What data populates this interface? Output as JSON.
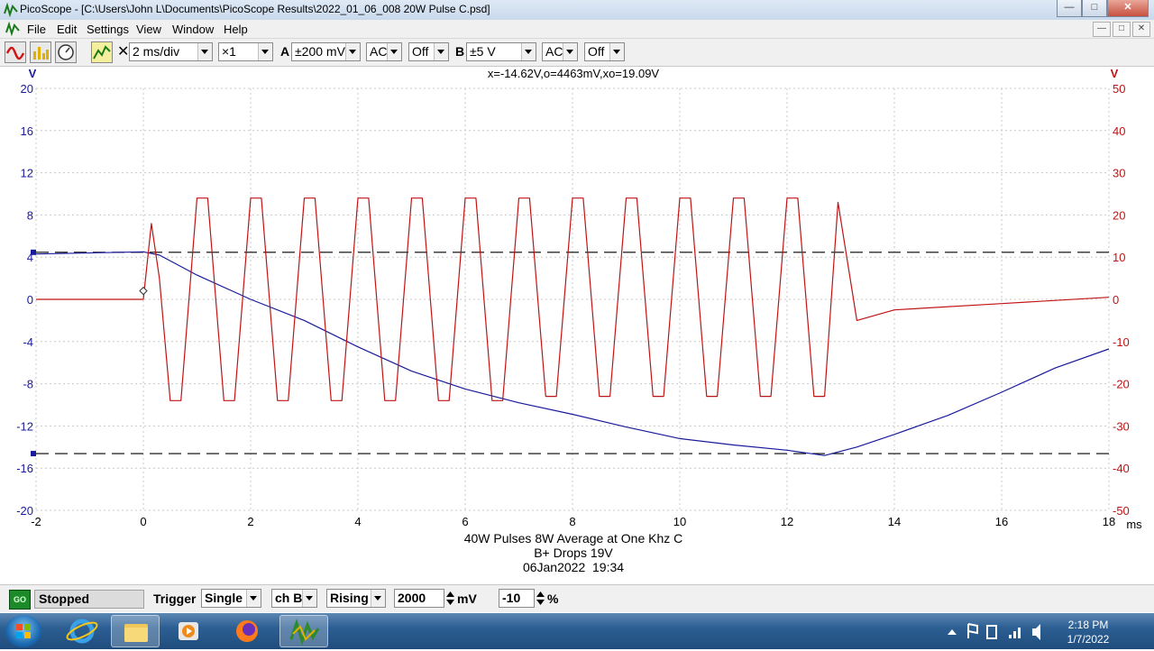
{
  "window": {
    "title": "PicoScope - [C:\\Users\\John L\\Documents\\PicoScope Results\\2022_01_06_008 20W Pulse C.psd]",
    "buttons": {
      "minimize": "—",
      "maximize": "□",
      "close": "✕"
    }
  },
  "menu": {
    "items": [
      "File",
      "Edit",
      "Settings",
      "View",
      "Window",
      "Help"
    ]
  },
  "toolbar": {
    "timebase": "2 ms/div",
    "zoom": "×1",
    "channel_a": {
      "label": "A",
      "range": "±200 mV",
      "coupling": "AC",
      "filter": "Off",
      "color": "#1a1a9c"
    },
    "channel_b": {
      "label": "B",
      "range": "±5 V",
      "coupling": "AC",
      "filter": "Off",
      "color": "#d01515"
    },
    "close_symbol": "✕"
  },
  "readout": "x=-14.62V,o=4463mV,xo=19.09V",
  "chart_data": {
    "type": "line",
    "xlabel": "ms",
    "ylabel_left": "V",
    "ylabel_right": "V",
    "xlim": [
      -2,
      18
    ],
    "ylim_left": [
      -20,
      20
    ],
    "ylim_right": [
      -50,
      50
    ],
    "x_ticks": [
      -2,
      0,
      2,
      4,
      6,
      8,
      10,
      12,
      14,
      16,
      18
    ],
    "y_left_ticks": [
      20,
      16,
      12,
      8,
      4,
      0,
      -4,
      -8,
      -12,
      -16,
      -20
    ],
    "y_right_ticks": [
      50,
      40,
      30,
      20,
      10,
      0,
      -10,
      -20,
      -30,
      -40,
      -50
    ],
    "annotations": [
      "40W Pulses 8W Average at One Khz C",
      "B+ Drops 19V",
      "06Jan2022  19:34"
    ],
    "grid": true,
    "rulers_left_units": [
      4.46,
      -14.62
    ],
    "series": [
      {
        "axis": "left",
        "color": "#1a1a9c",
        "x": [
          -2,
          0,
          0.3,
          1,
          2,
          3,
          4,
          5,
          6,
          7,
          8,
          9,
          10,
          11,
          12,
          12.7,
          13.3,
          14,
          15,
          16,
          17,
          18
        ],
        "y": [
          4.3,
          4.5,
          4.2,
          2.3,
          0,
          -2.0,
          -4.5,
          -6.8,
          -8.5,
          -9.8,
          -10.9,
          -12.1,
          -13.2,
          -13.8,
          -14.3,
          -14.8,
          -14.0,
          -12.8,
          -11.0,
          -8.8,
          -6.5,
          -4.7
        ]
      },
      {
        "axis": "right",
        "color": "#c01414",
        "x": [
          -2,
          0,
          0.15,
          0.3,
          0.5,
          0.7,
          1.0,
          1.2,
          1.5,
          1.7,
          2.0,
          2.2,
          2.5,
          2.7,
          3.0,
          3.2,
          3.5,
          3.7,
          4.0,
          4.2,
          4.5,
          4.7,
          5.0,
          5.2,
          5.5,
          5.7,
          6.0,
          6.2,
          6.5,
          6.7,
          7.0,
          7.2,
          7.5,
          7.7,
          8.0,
          8.2,
          8.5,
          8.7,
          9.0,
          9.2,
          9.5,
          9.7,
          10.0,
          10.2,
          10.5,
          10.7,
          11.0,
          11.2,
          11.5,
          11.7,
          12.0,
          12.2,
          12.5,
          12.7,
          12.95,
          13.3,
          14,
          16,
          18
        ],
        "y": [
          0,
          0,
          18,
          5,
          -24,
          -24,
          24,
          24,
          -24,
          -24,
          24,
          24,
          -24,
          -24,
          24,
          24,
          -24,
          -24,
          24,
          24,
          -24,
          -24,
          24,
          24,
          -24,
          -24,
          24,
          24,
          -24,
          -24,
          24,
          24,
          -23,
          -23,
          24,
          24,
          -23,
          -23,
          24,
          24,
          -23,
          -23,
          24,
          24,
          -23,
          -23,
          24,
          24,
          -23,
          -23,
          24,
          24,
          -23,
          -23,
          23,
          -5,
          -2.5,
          -1,
          0.5
        ]
      }
    ]
  },
  "status": {
    "go_label": "GO",
    "state": "Stopped",
    "trigger_label": "Trigger",
    "trigger_mode": "Single",
    "trigger_source": "ch B",
    "trigger_edge": "Rising",
    "threshold": "2000",
    "threshold_unit": "mV",
    "pretrigger": "-10",
    "pretrigger_unit": "%"
  },
  "taskbar": {
    "time": "2:18 PM",
    "date": "1/7/2022"
  }
}
